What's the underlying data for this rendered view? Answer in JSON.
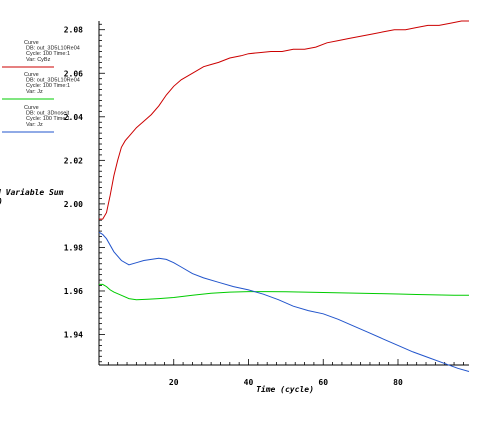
{
  "chart_data": {
    "type": "line",
    "title": "",
    "xlabel": "Time (cycle)",
    "ylabel": "d Variable Sum",
    "ylabel_line2": ")",
    "xlim": [
      0,
      99
    ],
    "ylim": [
      1.926,
      2.084
    ],
    "x_ticks": [
      20,
      40,
      60,
      80
    ],
    "y_ticks": [
      1.94,
      1.96,
      1.98,
      2.0,
      2.02,
      2.04,
      2.06,
      2.08
    ],
    "x_tick_labels": [
      "20",
      "40",
      "60",
      "80"
    ],
    "y_tick_labels": [
      "1.94",
      "1.96",
      "1.98",
      "2.00",
      "2.02",
      "2.04",
      "2.06",
      "2.08"
    ],
    "grid": false,
    "legend_position": "left",
    "series": [
      {
        "name": "Var: CyBz",
        "legend_lines": [
          "Curve",
          "DB: out_3D5L10Re04",
          "Cycle: 100    Time:1",
          "Var: CyBz"
        ],
        "color": "#cc0000",
        "x": [
          0,
          1,
          2,
          3,
          4,
          5,
          6,
          7,
          8,
          10,
          12,
          14,
          16,
          18,
          20,
          22,
          24,
          26,
          28,
          30,
          32,
          35,
          38,
          40,
          43,
          46,
          49,
          52,
          55,
          58,
          61,
          64,
          67,
          70,
          73,
          76,
          79,
          82,
          85,
          88,
          91,
          94,
          97,
          99
        ],
        "y": [
          1.993,
          1.993,
          1.996,
          2.004,
          2.013,
          2.02,
          2.026,
          2.029,
          2.031,
          2.035,
          2.038,
          2.041,
          2.045,
          2.05,
          2.054,
          2.057,
          2.059,
          2.061,
          2.063,
          2.064,
          2.065,
          2.067,
          2.068,
          2.069,
          2.0695,
          2.07,
          2.07,
          2.071,
          2.071,
          2.072,
          2.074,
          2.075,
          2.076,
          2.077,
          2.078,
          2.079,
          2.08,
          2.08,
          2.081,
          2.082,
          2.082,
          2.083,
          2.084,
          2.084
        ]
      },
      {
        "name": "Var: Jz",
        "legend_lines": [
          "Curve",
          "DB: out_3D5L10Re04",
          "Cycle: 100    Time:1",
          "Var: Jz"
        ],
        "color": "#00cc00",
        "x": [
          0,
          1,
          2,
          3,
          4,
          6,
          8,
          10,
          13,
          16,
          20,
          25,
          30,
          35,
          40,
          45,
          50,
          55,
          60,
          65,
          70,
          75,
          80,
          85,
          90,
          95,
          99
        ],
        "y": [
          1.963,
          1.963,
          1.962,
          1.9605,
          1.9595,
          1.958,
          1.9565,
          1.956,
          1.9562,
          1.9565,
          1.957,
          1.958,
          1.959,
          1.9595,
          1.9597,
          1.9597,
          1.9596,
          1.9595,
          1.9593,
          1.9591,
          1.959,
          1.9588,
          1.9586,
          1.9584,
          1.9582,
          1.958,
          1.958
        ]
      },
      {
        "name": "Var: Jz",
        "legend_lines": [
          "Curve",
          "DB: out_3Dnoseit",
          "Cycle: 100    Time:1",
          "Var: Jz"
        ],
        "color": "#2255cc",
        "x": [
          0,
          1,
          2,
          4,
          6,
          8,
          10,
          12,
          14,
          16,
          18,
          20,
          22,
          25,
          28,
          32,
          36,
          40,
          44,
          48,
          52,
          56,
          60,
          64,
          68,
          72,
          76,
          80,
          84,
          88,
          92,
          96,
          99
        ],
        "y": [
          1.987,
          1.986,
          1.984,
          1.978,
          1.974,
          1.972,
          1.973,
          1.974,
          1.9745,
          1.975,
          1.9745,
          1.973,
          1.971,
          1.968,
          1.966,
          1.964,
          1.962,
          1.9605,
          1.9585,
          1.956,
          1.953,
          1.951,
          1.9495,
          1.947,
          1.944,
          1.941,
          1.938,
          1.935,
          1.932,
          1.9295,
          1.927,
          1.9245,
          1.923
        ]
      }
    ]
  }
}
